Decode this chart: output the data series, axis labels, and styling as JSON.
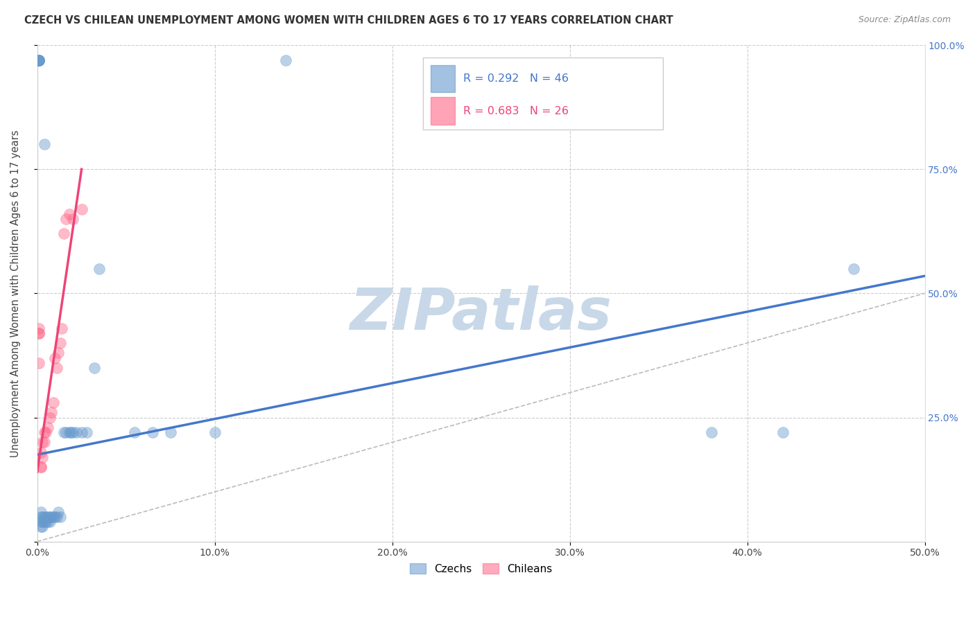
{
  "title": "CZECH VS CHILEAN UNEMPLOYMENT AMONG WOMEN WITH CHILDREN AGES 6 TO 17 YEARS CORRELATION CHART",
  "source": "Source: ZipAtlas.com",
  "ylabel": "Unemployment Among Women with Children Ages 6 to 17 years",
  "xlim": [
    0.0,
    0.5
  ],
  "ylim": [
    0.0,
    1.0
  ],
  "xtick_vals": [
    0.0,
    0.1,
    0.2,
    0.3,
    0.4,
    0.5
  ],
  "xtick_labels": [
    "0.0%",
    "10.0%",
    "20.0%",
    "30.0%",
    "40.0%",
    "50.0%"
  ],
  "ytick_vals": [
    0.0,
    0.25,
    0.5,
    0.75,
    1.0
  ],
  "ytick_vals_right": [
    0.25,
    0.5,
    0.75,
    1.0
  ],
  "ytick_labels_right": [
    "25.0%",
    "50.0%",
    "75.0%",
    "100.0%"
  ],
  "czech_color": "#6699CC",
  "chilean_color": "#FF6688",
  "legend_R_czech": "R = 0.292",
  "legend_N_czech": "N = 46",
  "legend_R_chilean": "R = 0.683",
  "legend_N_chilean": "N = 26",
  "watermark": "ZIPatlas",
  "watermark_color": "#C8D8E8",
  "czech_scatter_x": [
    0.001,
    0.001,
    0.001,
    0.001,
    0.001,
    0.001,
    0.002,
    0.002,
    0.002,
    0.002,
    0.003,
    0.003,
    0.003,
    0.004,
    0.004,
    0.004,
    0.005,
    0.005,
    0.006,
    0.006,
    0.007,
    0.007,
    0.008,
    0.009,
    0.01,
    0.011,
    0.012,
    0.013,
    0.015,
    0.016,
    0.018,
    0.019,
    0.02,
    0.022,
    0.025,
    0.028,
    0.032,
    0.035,
    0.055,
    0.065,
    0.075,
    0.1,
    0.14,
    0.38,
    0.42,
    0.46
  ],
  "czech_scatter_y": [
    0.97,
    0.97,
    0.97,
    0.97,
    0.97,
    0.97,
    0.03,
    0.04,
    0.05,
    0.06,
    0.03,
    0.04,
    0.05,
    0.04,
    0.05,
    0.8,
    0.04,
    0.05,
    0.04,
    0.05,
    0.04,
    0.05,
    0.05,
    0.05,
    0.05,
    0.05,
    0.06,
    0.05,
    0.22,
    0.22,
    0.22,
    0.22,
    0.22,
    0.22,
    0.22,
    0.22,
    0.35,
    0.55,
    0.22,
    0.22,
    0.22,
    0.22,
    0.97,
    0.22,
    0.22,
    0.55
  ],
  "chilean_scatter_x": [
    0.001,
    0.001,
    0.001,
    0.001,
    0.002,
    0.002,
    0.002,
    0.003,
    0.003,
    0.004,
    0.004,
    0.005,
    0.006,
    0.007,
    0.008,
    0.009,
    0.01,
    0.011,
    0.012,
    0.013,
    0.014,
    0.015,
    0.016,
    0.018,
    0.02,
    0.025
  ],
  "chilean_scatter_y": [
    0.42,
    0.42,
    0.43,
    0.36,
    0.15,
    0.15,
    0.18,
    0.17,
    0.2,
    0.2,
    0.22,
    0.22,
    0.23,
    0.25,
    0.26,
    0.28,
    0.37,
    0.35,
    0.38,
    0.4,
    0.43,
    0.62,
    0.65,
    0.66,
    0.65,
    0.67
  ],
  "blue_line": {
    "x0": 0.0,
    "x1": 0.5,
    "y0": 0.175,
    "y1": 0.535
  },
  "pink_line": {
    "x0": 0.0,
    "x1": 0.025,
    "y0": 0.14,
    "y1": 0.75
  },
  "ref_line": {
    "x0": 0.0,
    "x1": 0.5,
    "y0": 0.0,
    "y1": 0.5
  }
}
